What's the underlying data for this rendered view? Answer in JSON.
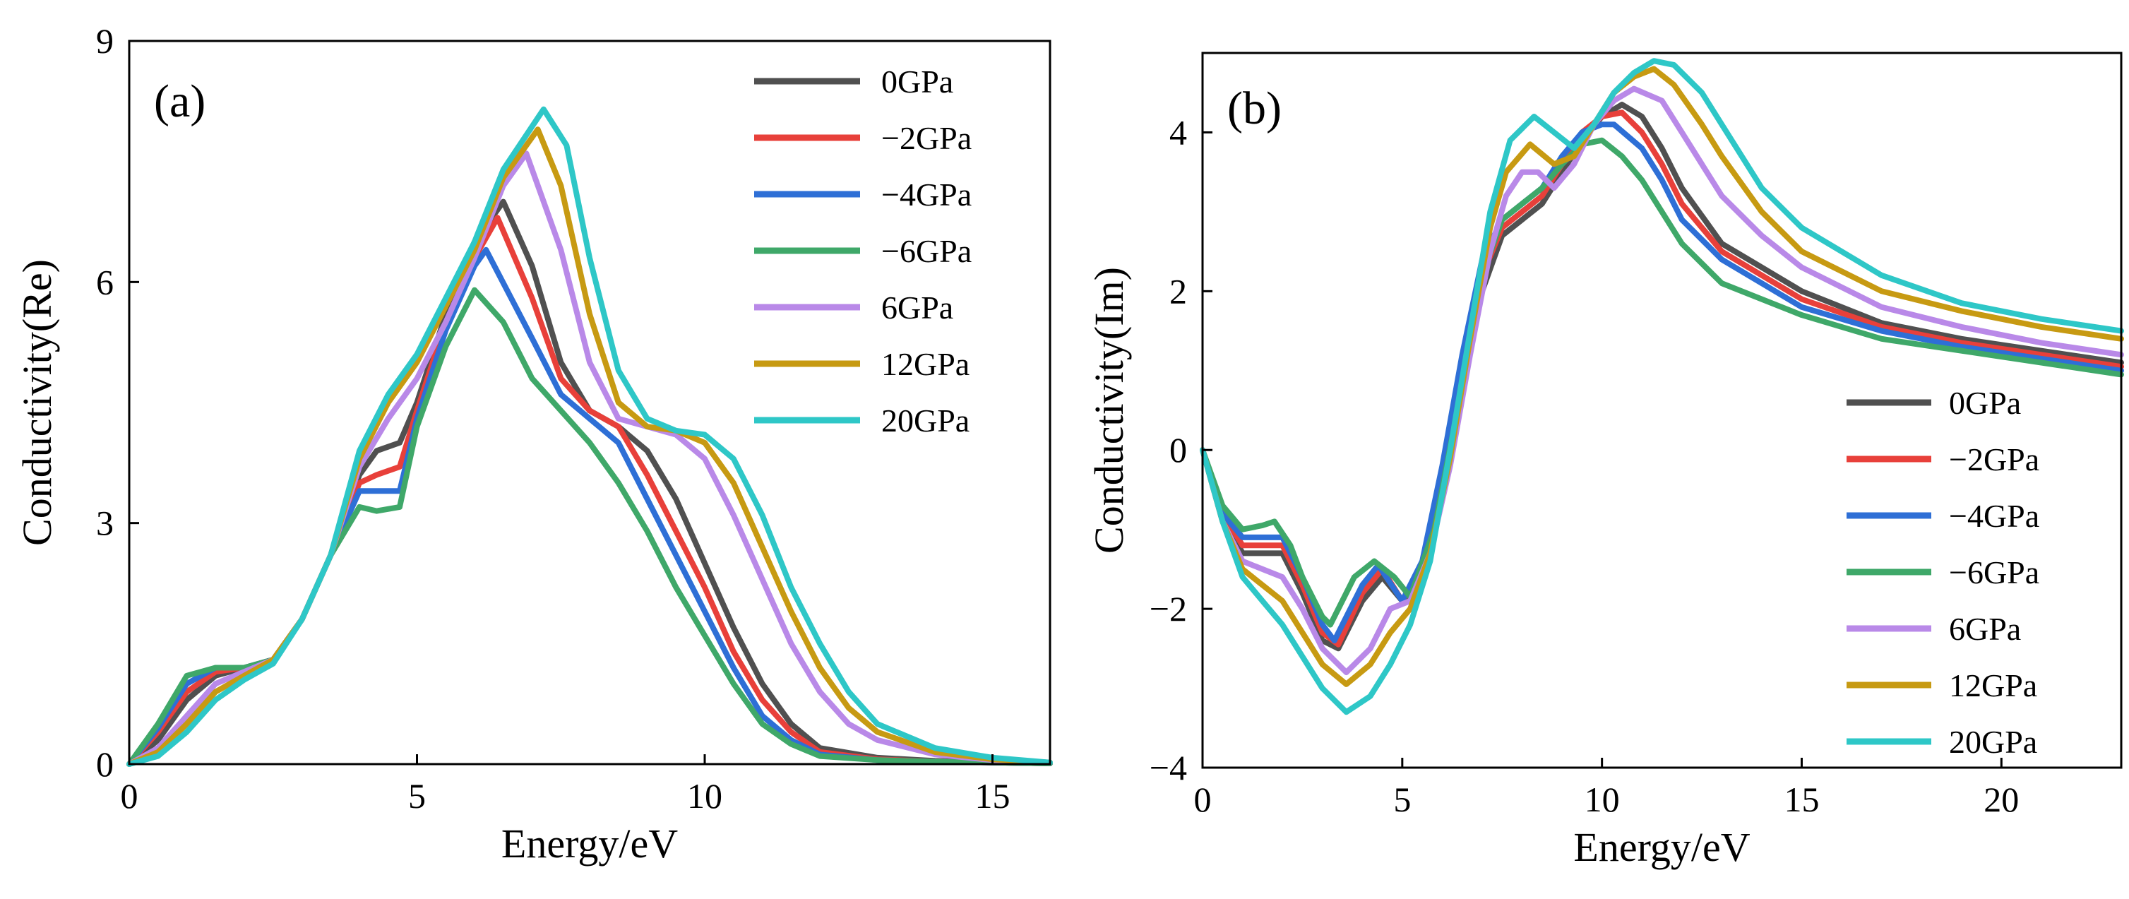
{
  "chart_data": [
    {
      "panel": "(a)",
      "type": "line",
      "title": "",
      "xlabel": "Energy/eV",
      "ylabel": "Conductivity(Re)",
      "xlim": [
        0,
        16
      ],
      "ylim": [
        0,
        9
      ],
      "xticks": [
        "0",
        "5",
        "10",
        "15"
      ],
      "xtick_values": [
        0,
        5,
        10,
        15
      ],
      "yticks": [
        "0",
        "3",
        "6",
        "9"
      ],
      "ytick_values": [
        0,
        3,
        6,
        9
      ],
      "legend_position": "top-right",
      "series": [
        {
          "name": "0GPa",
          "color": "#505050",
          "x": [
            0,
            0.5,
            1,
            1.5,
            2,
            2.5,
            3,
            3.5,
            4,
            4.3,
            4.7,
            5,
            5.5,
            6,
            6.5,
            7,
            7.5,
            8,
            8.5,
            9,
            9.5,
            10,
            10.5,
            11,
            11.5,
            12,
            13,
            14,
            15,
            16
          ],
          "y": [
            0,
            0.3,
            0.8,
            1.1,
            1.2,
            1.3,
            1.8,
            2.6,
            3.6,
            3.9,
            4.0,
            4.5,
            5.6,
            6.5,
            7.0,
            6.2,
            5.0,
            4.4,
            4.2,
            3.9,
            3.3,
            2.5,
            1.7,
            1.0,
            0.5,
            0.2,
            0.08,
            0.04,
            0.02,
            0.01
          ]
        },
        {
          "name": "−2GPa",
          "color": "#e8403a",
          "x": [
            0,
            0.5,
            1,
            1.5,
            2,
            2.5,
            3,
            3.5,
            4,
            4.3,
            4.7,
            5,
            5.5,
            6,
            6.4,
            7,
            7.5,
            8,
            8.5,
            9,
            9.5,
            10,
            10.5,
            11,
            11.5,
            12,
            13,
            14,
            15,
            16
          ],
          "y": [
            0,
            0.4,
            0.9,
            1.15,
            1.2,
            1.3,
            1.8,
            2.6,
            3.5,
            3.6,
            3.7,
            4.4,
            5.5,
            6.3,
            6.8,
            5.8,
            4.8,
            4.4,
            4.2,
            3.6,
            2.9,
            2.2,
            1.4,
            0.8,
            0.4,
            0.15,
            0.06,
            0.03,
            0.02,
            0.01
          ]
        },
        {
          "name": "−4GPa",
          "color": "#2e6fd6",
          "x": [
            0,
            0.5,
            1,
            1.5,
            2,
            2.5,
            3,
            3.5,
            4,
            4.3,
            4.7,
            5,
            5.5,
            6,
            6.2,
            7,
            7.5,
            8,
            8.5,
            9,
            9.5,
            10,
            10.5,
            11,
            11.5,
            12,
            13,
            14,
            15,
            16
          ],
          "y": [
            0,
            0.45,
            1.0,
            1.2,
            1.2,
            1.3,
            1.8,
            2.6,
            3.4,
            3.4,
            3.4,
            4.3,
            5.4,
            6.2,
            6.4,
            5.3,
            4.6,
            4.3,
            4.0,
            3.3,
            2.6,
            1.9,
            1.2,
            0.6,
            0.3,
            0.12,
            0.05,
            0.03,
            0.02,
            0.01
          ]
        },
        {
          "name": "−6GPa",
          "color": "#3fa869",
          "x": [
            0,
            0.5,
            1,
            1.5,
            2,
            2.5,
            3,
            3.5,
            4,
            4.3,
            4.7,
            5,
            5.5,
            6,
            6.5,
            7,
            7.5,
            8,
            8.5,
            9,
            9.5,
            10,
            10.5,
            11,
            11.5,
            12,
            13,
            14,
            15,
            16
          ],
          "y": [
            0,
            0.5,
            1.1,
            1.2,
            1.2,
            1.3,
            1.8,
            2.6,
            3.2,
            3.15,
            3.2,
            4.2,
            5.2,
            5.9,
            5.5,
            4.8,
            4.4,
            4.0,
            3.5,
            2.9,
            2.2,
            1.6,
            1.0,
            0.5,
            0.25,
            0.1,
            0.05,
            0.03,
            0.02,
            0.01
          ]
        },
        {
          "name": "6GPa",
          "color": "#b989e8",
          "x": [
            0,
            0.5,
            1,
            1.5,
            2,
            2.5,
            3,
            3.5,
            4,
            4.5,
            5,
            5.5,
            6,
            6.5,
            6.9,
            7.5,
            8,
            8.5,
            9,
            9.5,
            10,
            10.5,
            11,
            11.5,
            12,
            12.5,
            13,
            14,
            15,
            16
          ],
          "y": [
            0,
            0.2,
            0.6,
            1.0,
            1.15,
            1.3,
            1.8,
            2.6,
            3.7,
            4.3,
            4.8,
            5.5,
            6.3,
            7.2,
            7.6,
            6.4,
            5.0,
            4.3,
            4.2,
            4.1,
            3.8,
            3.1,
            2.3,
            1.5,
            0.9,
            0.5,
            0.3,
            0.12,
            0.05,
            0.02
          ]
        },
        {
          "name": "12GPa",
          "color": "#c79a12",
          "x": [
            0,
            0.5,
            1,
            1.5,
            2,
            2.5,
            3,
            3.5,
            4,
            4.5,
            5,
            5.5,
            6,
            6.5,
            7.1,
            7.5,
            8,
            8.5,
            9,
            9.5,
            10,
            10.5,
            11,
            11.5,
            12,
            12.5,
            13,
            14,
            15,
            16
          ],
          "y": [
            0,
            0.15,
            0.5,
            0.9,
            1.1,
            1.3,
            1.8,
            2.6,
            3.8,
            4.5,
            5.0,
            5.7,
            6.4,
            7.3,
            7.9,
            7.2,
            5.6,
            4.5,
            4.2,
            4.15,
            4.0,
            3.5,
            2.7,
            1.9,
            1.2,
            0.7,
            0.4,
            0.15,
            0.06,
            0.02
          ]
        },
        {
          "name": "20GPa",
          "color": "#2ec7c7",
          "x": [
            0,
            0.5,
            1,
            1.5,
            2,
            2.5,
            3,
            3.5,
            4,
            4.5,
            5,
            5.5,
            6,
            6.5,
            7.2,
            7.6,
            8,
            8.5,
            9,
            9.5,
            10,
            10.5,
            11,
            11.5,
            12,
            12.5,
            13,
            14,
            15,
            16
          ],
          "y": [
            0,
            0.1,
            0.4,
            0.8,
            1.05,
            1.25,
            1.8,
            2.6,
            3.9,
            4.6,
            5.1,
            5.8,
            6.5,
            7.4,
            8.15,
            7.7,
            6.3,
            4.9,
            4.3,
            4.15,
            4.1,
            3.8,
            3.1,
            2.2,
            1.5,
            0.9,
            0.5,
            0.2,
            0.08,
            0.02
          ]
        }
      ]
    },
    {
      "panel": "(b)",
      "type": "line",
      "title": "",
      "xlabel": "Energy/eV",
      "ylabel": "Conductivity(Im)",
      "xlim": [
        0,
        23
      ],
      "ylim": [
        -4,
        5
      ],
      "xticks": [
        "0",
        "5",
        "10",
        "15",
        "20"
      ],
      "xtick_values": [
        0,
        5,
        10,
        15,
        20
      ],
      "yticks": [
        "−4",
        "−2",
        "0",
        "2",
        "4"
      ],
      "ytick_values": [
        -4,
        -2,
        0,
        2,
        4
      ],
      "legend_position": "bottom-right",
      "series": [
        {
          "name": "0GPa",
          "color": "#505050",
          "x": [
            0,
            0.5,
            1,
            1.5,
            2,
            2.5,
            3,
            3.4,
            4,
            4.5,
            5,
            5.5,
            6,
            6.5,
            7,
            7.5,
            8,
            8.5,
            9,
            9.5,
            10,
            10.5,
            11,
            11.5,
            12,
            13,
            14,
            15,
            17,
            19,
            21,
            23
          ],
          "y": [
            0,
            -0.8,
            -1.3,
            -1.3,
            -1.3,
            -1.8,
            -2.4,
            -2.5,
            -1.9,
            -1.6,
            -1.9,
            -1.6,
            -0.5,
            0.8,
            2.0,
            2.7,
            2.9,
            3.1,
            3.5,
            3.9,
            4.2,
            4.35,
            4.2,
            3.8,
            3.3,
            2.6,
            2.3,
            2.0,
            1.6,
            1.4,
            1.25,
            1.1
          ]
        },
        {
          "name": "−2GPa",
          "color": "#e8403a",
          "x": [
            0,
            0.5,
            1,
            1.5,
            2,
            2.5,
            3,
            3.4,
            4,
            4.5,
            5,
            5.5,
            6,
            6.5,
            7,
            7.5,
            8,
            8.5,
            9,
            9.5,
            10,
            10.5,
            11,
            11.5,
            12,
            13,
            14,
            15,
            17,
            19,
            21,
            23
          ],
          "y": [
            0,
            -0.8,
            -1.2,
            -1.2,
            -1.2,
            -1.7,
            -2.3,
            -2.45,
            -1.8,
            -1.5,
            -1.9,
            -1.5,
            -0.3,
            1.0,
            2.2,
            2.8,
            3.0,
            3.2,
            3.6,
            4.0,
            4.2,
            4.25,
            4.0,
            3.6,
            3.1,
            2.5,
            2.2,
            1.9,
            1.55,
            1.35,
            1.2,
            1.05
          ]
        },
        {
          "name": "−4GPa",
          "color": "#2e6fd6",
          "x": [
            0,
            0.5,
            1,
            1.5,
            2,
            2.5,
            3,
            3.3,
            4,
            4.4,
            5,
            5.5,
            6,
            6.5,
            7,
            7.5,
            8,
            8.5,
            9,
            9.5,
            10,
            10.3,
            11,
            11.5,
            12,
            13,
            14,
            15,
            17,
            19,
            21,
            23
          ],
          "y": [
            0,
            -0.8,
            -1.1,
            -1.1,
            -1.1,
            -1.6,
            -2.2,
            -2.4,
            -1.7,
            -1.45,
            -1.9,
            -1.4,
            -0.2,
            1.2,
            2.4,
            2.9,
            3.1,
            3.3,
            3.7,
            4.0,
            4.1,
            4.1,
            3.8,
            3.4,
            2.9,
            2.4,
            2.1,
            1.8,
            1.5,
            1.3,
            1.15,
            1.0
          ]
        },
        {
          "name": "−6GPa",
          "color": "#3fa869",
          "x": [
            0,
            0.5,
            1,
            1.5,
            1.8,
            2.2,
            2.5,
            3,
            3.2,
            3.8,
            4.3,
            4.8,
            5.2,
            5.8,
            6.3,
            7,
            7.5,
            8,
            8.5,
            9,
            9.5,
            10,
            10.5,
            11,
            11.5,
            12,
            13,
            14,
            15,
            17,
            19,
            21,
            23
          ],
          "y": [
            0,
            -0.7,
            -1.0,
            -0.95,
            -0.9,
            -1.2,
            -1.6,
            -2.1,
            -2.2,
            -1.6,
            -1.4,
            -1.6,
            -1.85,
            -1.0,
            0.3,
            2.2,
            2.9,
            3.1,
            3.3,
            3.6,
            3.85,
            3.9,
            3.7,
            3.4,
            3.0,
            2.6,
            2.1,
            1.9,
            1.7,
            1.4,
            1.25,
            1.1,
            0.95
          ]
        },
        {
          "name": "6GPa",
          "color": "#b989e8",
          "x": [
            0,
            0.5,
            1,
            1.5,
            2,
            2.5,
            3,
            3.6,
            4.2,
            4.7,
            5.2,
            5.7,
            6.2,
            6.7,
            7.2,
            7.6,
            8,
            8.4,
            8.8,
            9.3,
            9.8,
            10.3,
            10.8,
            11.5,
            12,
            13,
            14,
            15,
            17,
            19,
            21,
            23
          ],
          "y": [
            0,
            -0.9,
            -1.4,
            -1.5,
            -1.6,
            -2.0,
            -2.5,
            -2.8,
            -2.5,
            -2.0,
            -1.9,
            -1.3,
            -0.2,
            1.2,
            2.5,
            3.2,
            3.5,
            3.5,
            3.3,
            3.6,
            4.1,
            4.4,
            4.55,
            4.4,
            4.0,
            3.2,
            2.7,
            2.3,
            1.8,
            1.55,
            1.35,
            1.2
          ]
        },
        {
          "name": "12GPa",
          "color": "#c79a12",
          "x": [
            0,
            0.5,
            1,
            1.5,
            2,
            2.5,
            3,
            3.6,
            4.2,
            4.7,
            5.2,
            5.7,
            6.2,
            6.7,
            7.2,
            7.6,
            8.2,
            8.8,
            9.3,
            9.8,
            10.3,
            10.8,
            11.3,
            11.8,
            12.5,
            13,
            14,
            15,
            17,
            19,
            21,
            23
          ],
          "y": [
            0,
            -0.9,
            -1.5,
            -1.7,
            -1.9,
            -2.3,
            -2.7,
            -2.95,
            -2.7,
            -2.3,
            -2.0,
            -1.3,
            -0.1,
            1.4,
            2.8,
            3.5,
            3.85,
            3.6,
            3.7,
            4.1,
            4.5,
            4.7,
            4.8,
            4.6,
            4.1,
            3.7,
            3.0,
            2.5,
            2.0,
            1.75,
            1.55,
            1.4
          ]
        },
        {
          "name": "20GPa",
          "color": "#2ec7c7",
          "x": [
            0,
            0.5,
            1,
            1.5,
            2,
            2.5,
            3,
            3.6,
            4.2,
            4.7,
            5.2,
            5.7,
            6.2,
            6.7,
            7.2,
            7.7,
            8.3,
            8.8,
            9.3,
            9.8,
            10.3,
            10.8,
            11.3,
            11.8,
            12.5,
            13,
            14,
            15,
            17,
            19,
            21,
            23
          ],
          "y": [
            0,
            -0.9,
            -1.6,
            -1.9,
            -2.2,
            -2.6,
            -3.0,
            -3.3,
            -3.1,
            -2.7,
            -2.2,
            -1.4,
            0.0,
            1.5,
            3.0,
            3.9,
            4.2,
            4.0,
            3.8,
            4.1,
            4.5,
            4.75,
            4.9,
            4.85,
            4.5,
            4.1,
            3.3,
            2.8,
            2.2,
            1.85,
            1.65,
            1.5
          ]
        }
      ]
    }
  ]
}
